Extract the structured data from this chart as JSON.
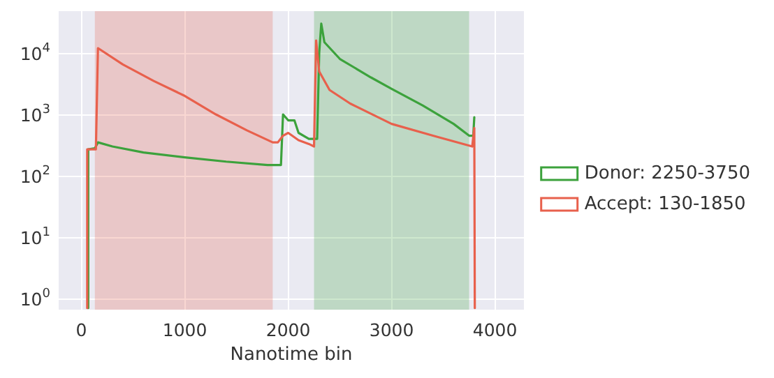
{
  "chart_data": {
    "type": "line",
    "xlabel": "Nanotime bin",
    "log": "y",
    "grid": true,
    "legend": "right",
    "marker": "none",
    "line_style": "solid",
    "xlim": [
      -220,
      4280
    ],
    "xticks": [
      0,
      1000,
      2000,
      3000,
      4000
    ],
    "ylim": [
      0.66,
      48000
    ],
    "yticks": [
      {
        "value": 1,
        "label": "10$^{0}$"
      },
      {
        "value": 10,
        "label": "10$^{1}$"
      },
      {
        "value": 100,
        "label": "10$^{2}$"
      },
      {
        "value": 1000,
        "label": "10$^{3}$"
      },
      {
        "value": 10000,
        "label": "10$^{4}$"
      }
    ],
    "bands": [
      {
        "axis": "x",
        "from": 130,
        "to": 1850,
        "color": "#e8604c"
      },
      {
        "axis": "x",
        "from": 2250,
        "to": 3750,
        "color": "#3ca23c"
      }
    ],
    "series": [
      {
        "name": "Donor: 2250-3750",
        "color": "#3ca23c",
        "x": [
          66,
          66,
          130,
          160,
          300,
          600,
          1000,
          1400,
          1800,
          1930,
          1950,
          2000,
          2060,
          2100,
          2200,
          2280,
          2300,
          2320,
          2350,
          2500,
          2800,
          3000,
          3300,
          3600,
          3750,
          3790,
          3800
        ],
        "values": [
          0.7,
          270,
          280,
          350,
          300,
          240,
          200,
          170,
          150,
          150,
          1000,
          800,
          800,
          500,
          400,
          400,
          10000,
          30000,
          15000,
          8000,
          4000,
          2600,
          1400,
          700,
          450,
          450,
          900
        ]
      },
      {
        "name": "Accept: 130-1850",
        "color": "#e8604c",
        "x": [
          56,
          56,
          140,
          160,
          400,
          700,
          1000,
          1300,
          1600,
          1850,
          1900,
          1950,
          2000,
          2100,
          2200,
          2250,
          2270,
          2300,
          2400,
          2600,
          3000,
          3400,
          3780,
          3800,
          3805
        ],
        "values": [
          0.7,
          270,
          270,
          12000,
          6500,
          3500,
          2000,
          1000,
          550,
          350,
          350,
          450,
          500,
          380,
          330,
          300,
          16000,
          5000,
          2500,
          1500,
          700,
          450,
          300,
          600,
          0.7
        ]
      }
    ]
  }
}
